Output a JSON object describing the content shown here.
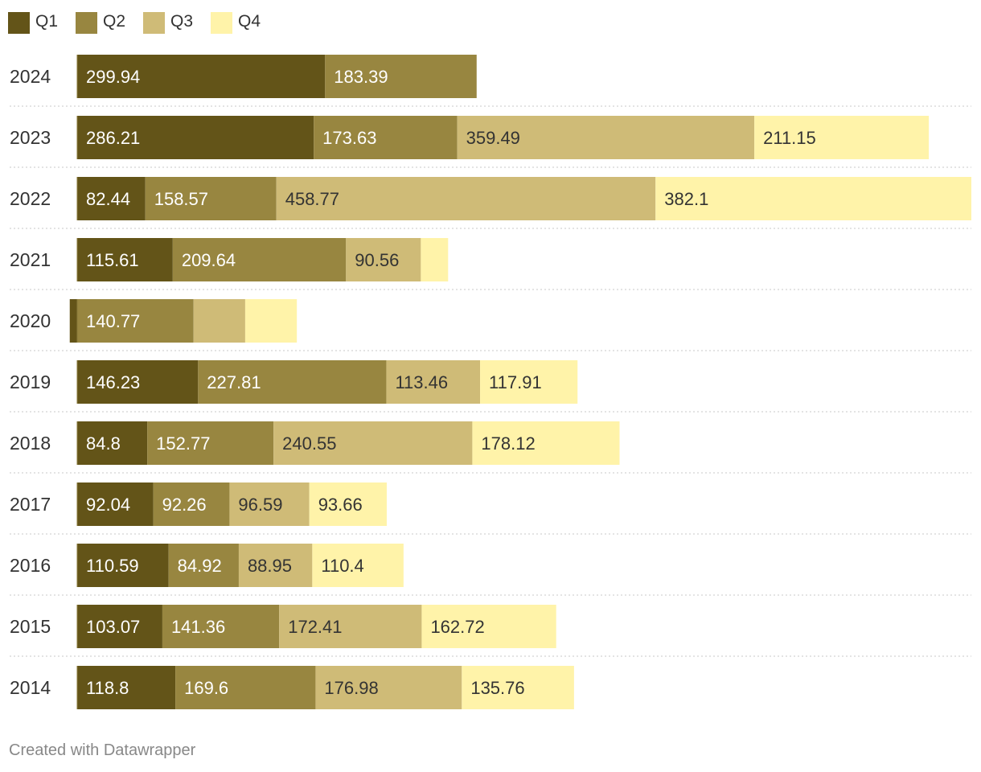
{
  "chart_data": {
    "type": "bar",
    "orientation": "horizontal",
    "stacked": true,
    "categories": [
      "2024",
      "2023",
      "2022",
      "2021",
      "2020",
      "2019",
      "2018",
      "2017",
      "2016",
      "2015",
      "2014"
    ],
    "series": [
      {
        "name": "Q1",
        "color": "#635418",
        "values": [
          299.94,
          286.21,
          82.44,
          115.61,
          -9.0,
          146.23,
          84.8,
          92.04,
          110.59,
          103.07,
          118.8
        ],
        "labels": [
          "299.94",
          "286.21",
          "82.44",
          "115.61",
          "",
          "146.23",
          "84.8",
          "92.04",
          "110.59",
          "103.07",
          "118.8"
        ]
      },
      {
        "name": "Q2",
        "color": "#988640",
        "values": [
          183.39,
          173.63,
          158.57,
          209.64,
          140.77,
          227.81,
          152.77,
          92.26,
          84.92,
          141.36,
          169.6
        ],
        "labels": [
          "183.39",
          "173.63",
          "158.57",
          "209.64",
          "140.77",
          "227.81",
          "152.77",
          "92.26",
          "84.92",
          "141.36",
          "169.6"
        ]
      },
      {
        "name": "Q3",
        "color": "#cfbb77",
        "values": [
          0,
          359.49,
          458.77,
          90.56,
          62.5,
          113.46,
          240.55,
          96.59,
          88.95,
          172.41,
          176.98
        ],
        "labels": [
          "",
          "359.49",
          "458.77",
          "90.56",
          "",
          "113.46",
          "240.55",
          "96.59",
          "88.95",
          "172.41",
          "176.98"
        ]
      },
      {
        "name": "Q4",
        "color": "#fff3a9",
        "values": [
          0,
          211.15,
          382.1,
          33.0,
          62.5,
          117.91,
          178.12,
          93.66,
          110.4,
          162.72,
          135.76
        ],
        "labels": [
          "",
          "211.15",
          "382.1",
          "",
          "",
          "117.91",
          "178.12",
          "93.66",
          "110.4",
          "162.72",
          "135.76"
        ]
      }
    ],
    "label_colors": {
      "Q1": "#ffffff",
      "Q2": "#ffffff",
      "Q3": "#333333",
      "Q4": "#333333"
    },
    "xlim": [
      -10,
      1081.9
    ],
    "legend_position": "top-left",
    "gridlines": "dotted row separators",
    "title": "",
    "xlabel": "",
    "ylabel": ""
  },
  "footer": {
    "credit": "Created with Datawrapper"
  }
}
